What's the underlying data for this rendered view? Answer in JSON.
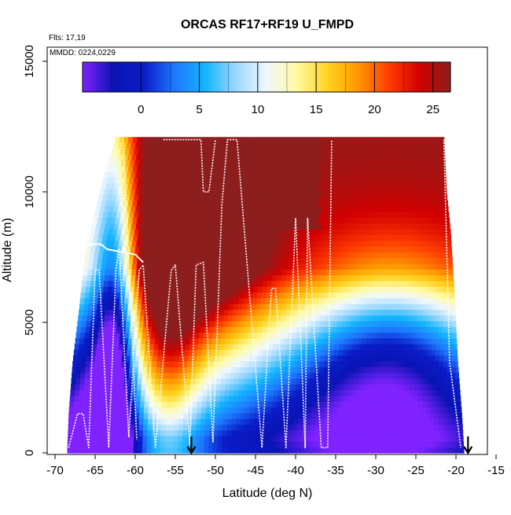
{
  "chart_data": {
    "type": "heatmap",
    "title": "ORCAS RF17+RF19 U_FMPD",
    "annotations": [
      "Flts: 17,19",
      "MMDD: 0224,0229"
    ],
    "xlabel": "Latitude (deg N)",
    "ylabel": "Altitude (m)",
    "xlim": [
      -70,
      -15
    ],
    "ylim": [
      0,
      15000
    ],
    "x_ticks": [
      -70,
      -65,
      -60,
      -55,
      -50,
      -45,
      -40,
      -35,
      -30,
      -25,
      -20,
      -15
    ],
    "y_ticks": [
      0,
      5000,
      10000,
      15000
    ],
    "colorbar": {
      "range": [
        -5,
        26.5
      ],
      "ticks": [
        0,
        5,
        10,
        15,
        20,
        25
      ],
      "placement": "top"
    },
    "markers": [
      {
        "type": "arrow",
        "x": -53
      },
      {
        "type": "arrow",
        "x": -18.5
      }
    ],
    "field_description_values": {
      "lat_range": [
        -68.5,
        -19
      ],
      "alt_top": 12000
    },
    "colors": {
      "scale": [
        "#7f22ff",
        "#0a14b4",
        "#0a1cc8",
        "#1e78ff",
        "#14b4ff",
        "#9cd8ff",
        "#f0f8ff",
        "#fffaa0",
        "#ffd21e",
        "#ff9600",
        "#ff3c00",
        "#d20000",
        "#8c1e1e"
      ],
      "flight_track": "#ffffff"
    }
  }
}
